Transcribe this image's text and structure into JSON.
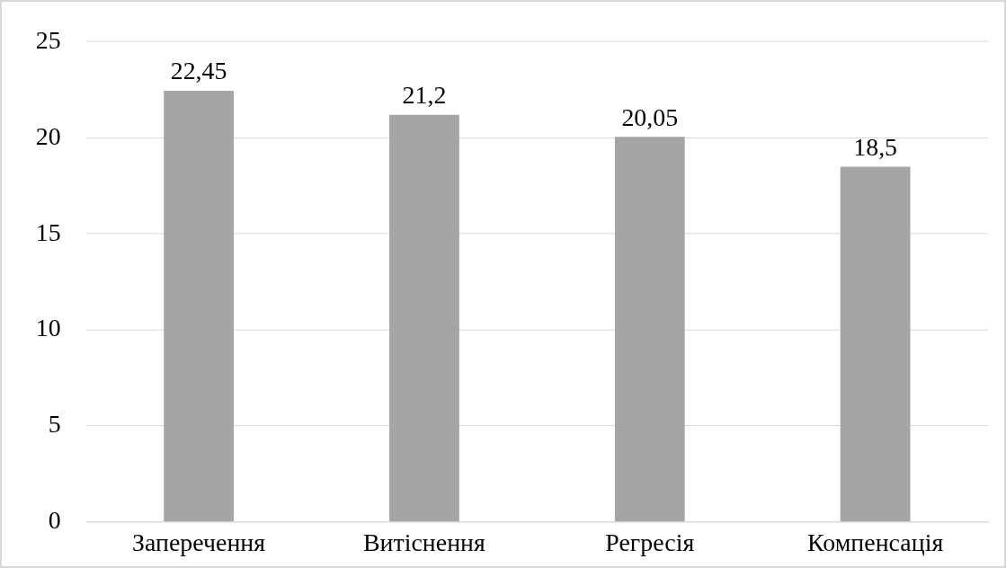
{
  "chart_data": {
    "type": "bar",
    "categories": [
      "Заперечення",
      "Витіснення",
      "Регресія",
      "Компенсація"
    ],
    "values": [
      22.45,
      21.2,
      20.05,
      18.5
    ],
    "color": "#a5a5a5",
    "value_labels": [
      "22,45",
      "21,2",
      "20,05",
      "18,5"
    ],
    "ylim": [
      0,
      25
    ],
    "yticks": [
      0,
      5,
      10,
      15,
      20,
      25
    ],
    "grid": "y",
    "legend": false
  }
}
